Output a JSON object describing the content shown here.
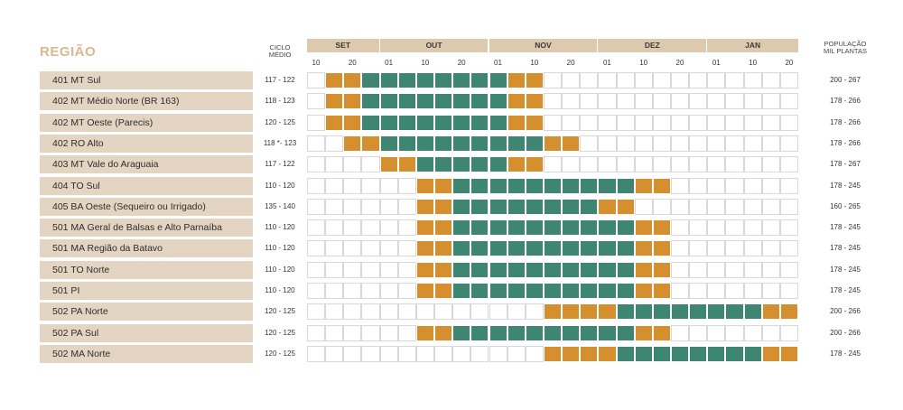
{
  "header": {
    "title": "REGIÃO",
    "ciclo_line1": "CICLO",
    "ciclo_line2": "MÉDIO",
    "pop_line1": "POPULAÇÃO",
    "pop_line2": "MIL PLANTAS"
  },
  "months": [
    "SET",
    "OUT",
    "NOV",
    "DEZ",
    "JAN"
  ],
  "ticks": [
    "10",
    "20",
    "01",
    "10",
    "20",
    "01",
    "10",
    "20",
    "01",
    "10",
    "20",
    "01",
    "10",
    "20"
  ],
  "colors": {
    "sowing_window": "#d68f2e",
    "recommended_window": "#3e8572",
    "label_bg": "#e3d5c2",
    "month_bg": "#ddc9ad",
    "title": "#d9b98e"
  },
  "rows": [
    {
      "region": "401 MT Sul",
      "ciclo": "117 - 122",
      "pop": "200 - 267"
    },
    {
      "region": "402 MT Médio Norte (BR 163)",
      "ciclo": "118 - 123",
      "pop": "178 - 266"
    },
    {
      "region": "402 MT Oeste (Parecis)",
      "ciclo": "120 - 125",
      "pop": "178 - 266"
    },
    {
      "region": "402 RO Alto",
      "ciclo": "118 *- 123",
      "pop": "178 - 266"
    },
    {
      "region": "403 MT Vale do Araguaia",
      "ciclo": "117 - 122",
      "pop": "178 - 267"
    },
    {
      "region": "404 TO Sul",
      "ciclo": "110 - 120",
      "pop": "178 - 245"
    },
    {
      "region": "405 BA Oeste (Sequeiro ou Irrigado)",
      "ciclo": "135 - 140",
      "pop": "160 - 265"
    },
    {
      "region": "501 MA Geral de Balsas e Alto Parnaíba",
      "ciclo": "110 - 120",
      "pop": "178 - 245"
    },
    {
      "region": "501 MA Região da Batavo",
      "ciclo": "110 - 120",
      "pop": "178 - 245"
    },
    {
      "region": "501 TO Norte",
      "ciclo": "110 - 120",
      "pop": "178 - 245"
    },
    {
      "region": "501 PI",
      "ciclo": "110 - 120",
      "pop": "178 - 245"
    },
    {
      "region": "502 PA Norte",
      "ciclo": "120 - 125",
      "pop": "200 - 266"
    },
    {
      "region": "502 PA Sul",
      "ciclo": "120 - 125",
      "pop": "200 - 266"
    },
    {
      "region": "502 MA Norte",
      "ciclo": "120 - 125",
      "pop": "178 - 245"
    }
  ],
  "chart_data": {
    "type": "table",
    "periods_per_row": 27,
    "legend": "cell codes: 0 = empty, 1 = orange window, 2 = green window",
    "rows": [
      [
        0,
        1,
        1,
        2,
        2,
        2,
        2,
        2,
        2,
        2,
        2,
        1,
        1,
        0,
        0,
        0,
        0,
        0,
        0,
        0,
        0,
        0,
        0,
        0,
        0,
        0,
        0
      ],
      [
        0,
        1,
        1,
        2,
        2,
        2,
        2,
        2,
        2,
        2,
        2,
        1,
        1,
        0,
        0,
        0,
        0,
        0,
        0,
        0,
        0,
        0,
        0,
        0,
        0,
        0,
        0
      ],
      [
        0,
        1,
        1,
        2,
        2,
        2,
        2,
        2,
        2,
        2,
        2,
        1,
        1,
        0,
        0,
        0,
        0,
        0,
        0,
        0,
        0,
        0,
        0,
        0,
        0,
        0,
        0
      ],
      [
        0,
        0,
        1,
        1,
        2,
        2,
        2,
        2,
        2,
        2,
        2,
        2,
        2,
        1,
        1,
        0,
        0,
        0,
        0,
        0,
        0,
        0,
        0,
        0,
        0,
        0,
        0
      ],
      [
        0,
        0,
        0,
        0,
        1,
        1,
        2,
        2,
        2,
        2,
        2,
        1,
        1,
        0,
        0,
        0,
        0,
        0,
        0,
        0,
        0,
        0,
        0,
        0,
        0,
        0,
        0
      ],
      [
        0,
        0,
        0,
        0,
        0,
        0,
        1,
        1,
        2,
        2,
        2,
        2,
        2,
        2,
        2,
        2,
        2,
        2,
        1,
        1,
        0,
        0,
        0,
        0,
        0,
        0,
        0
      ],
      [
        0,
        0,
        0,
        0,
        0,
        0,
        1,
        1,
        2,
        2,
        2,
        2,
        2,
        2,
        2,
        2,
        1,
        1,
        0,
        0,
        0,
        0,
        0,
        0,
        0,
        0,
        0
      ],
      [
        0,
        0,
        0,
        0,
        0,
        0,
        1,
        1,
        2,
        2,
        2,
        2,
        2,
        2,
        2,
        2,
        2,
        2,
        1,
        1,
        0,
        0,
        0,
        0,
        0,
        0,
        0
      ],
      [
        0,
        0,
        0,
        0,
        0,
        0,
        1,
        1,
        2,
        2,
        2,
        2,
        2,
        2,
        2,
        2,
        2,
        2,
        1,
        1,
        0,
        0,
        0,
        0,
        0,
        0,
        0
      ],
      [
        0,
        0,
        0,
        0,
        0,
        0,
        1,
        1,
        2,
        2,
        2,
        2,
        2,
        2,
        2,
        2,
        2,
        2,
        1,
        1,
        0,
        0,
        0,
        0,
        0,
        0,
        0
      ],
      [
        0,
        0,
        0,
        0,
        0,
        0,
        1,
        1,
        2,
        2,
        2,
        2,
        2,
        2,
        2,
        2,
        2,
        2,
        1,
        1,
        0,
        0,
        0,
        0,
        0,
        0,
        0
      ],
      [
        0,
        0,
        0,
        0,
        0,
        0,
        0,
        0,
        0,
        0,
        0,
        0,
        0,
        1,
        1,
        1,
        1,
        2,
        2,
        2,
        2,
        2,
        2,
        2,
        2,
        1,
        1
      ],
      [
        0,
        0,
        0,
        0,
        0,
        0,
        1,
        1,
        2,
        2,
        2,
        2,
        2,
        2,
        2,
        2,
        2,
        2,
        1,
        1,
        0,
        0,
        0,
        0,
        0,
        0,
        0
      ],
      [
        0,
        0,
        0,
        0,
        0,
        0,
        0,
        0,
        0,
        0,
        0,
        0,
        0,
        1,
        1,
        1,
        1,
        2,
        2,
        2,
        2,
        2,
        2,
        2,
        2,
        1,
        1
      ]
    ]
  }
}
